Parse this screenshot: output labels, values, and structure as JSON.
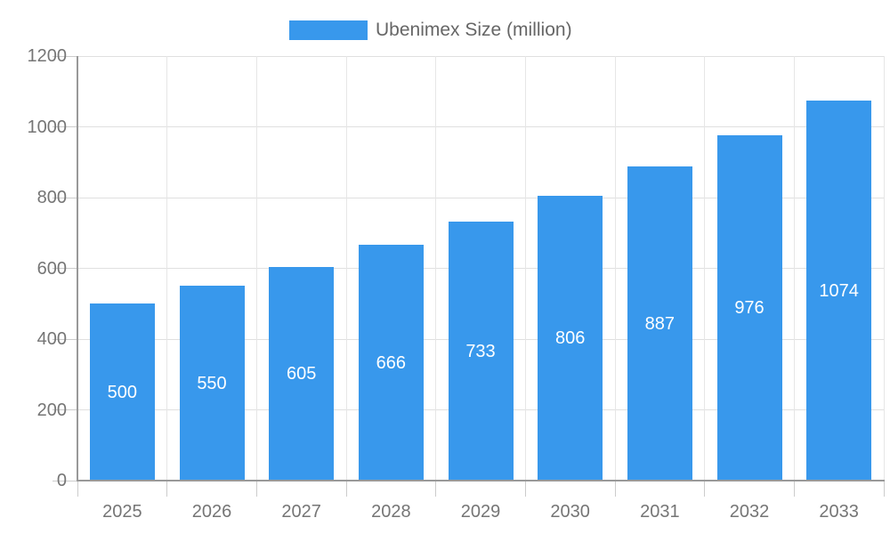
{
  "legend": {
    "label": "Ubenimex Size (million)"
  },
  "chart_data": {
    "type": "bar",
    "title": "Ubenimex Size (million)",
    "series_name": "Ubenimex Size (million)",
    "categories": [
      "2025",
      "2026",
      "2027",
      "2028",
      "2029",
      "2030",
      "2031",
      "2032",
      "2033"
    ],
    "values": [
      500,
      550,
      605,
      666,
      733,
      806,
      887,
      976,
      1074
    ],
    "value_labels": [
      "500",
      "550",
      "605",
      "666",
      "733",
      "806",
      "887",
      "976",
      "1074"
    ],
    "xlabel": "",
    "ylabel": "",
    "ylim": [
      0,
      1200
    ],
    "ytick_step": 200,
    "ytick_labels": [
      "0",
      "200",
      "400",
      "600",
      "800",
      "1000",
      "1200"
    ],
    "grid": true,
    "legend_position": "top",
    "colors": {
      "bar": "#3898EC",
      "value_label": "#ffffff",
      "axis_line": "#999999",
      "gridline": "#e0e0e0",
      "tick": "#cccccc",
      "axis_text": "#757575",
      "legend_text": "#666666"
    }
  }
}
